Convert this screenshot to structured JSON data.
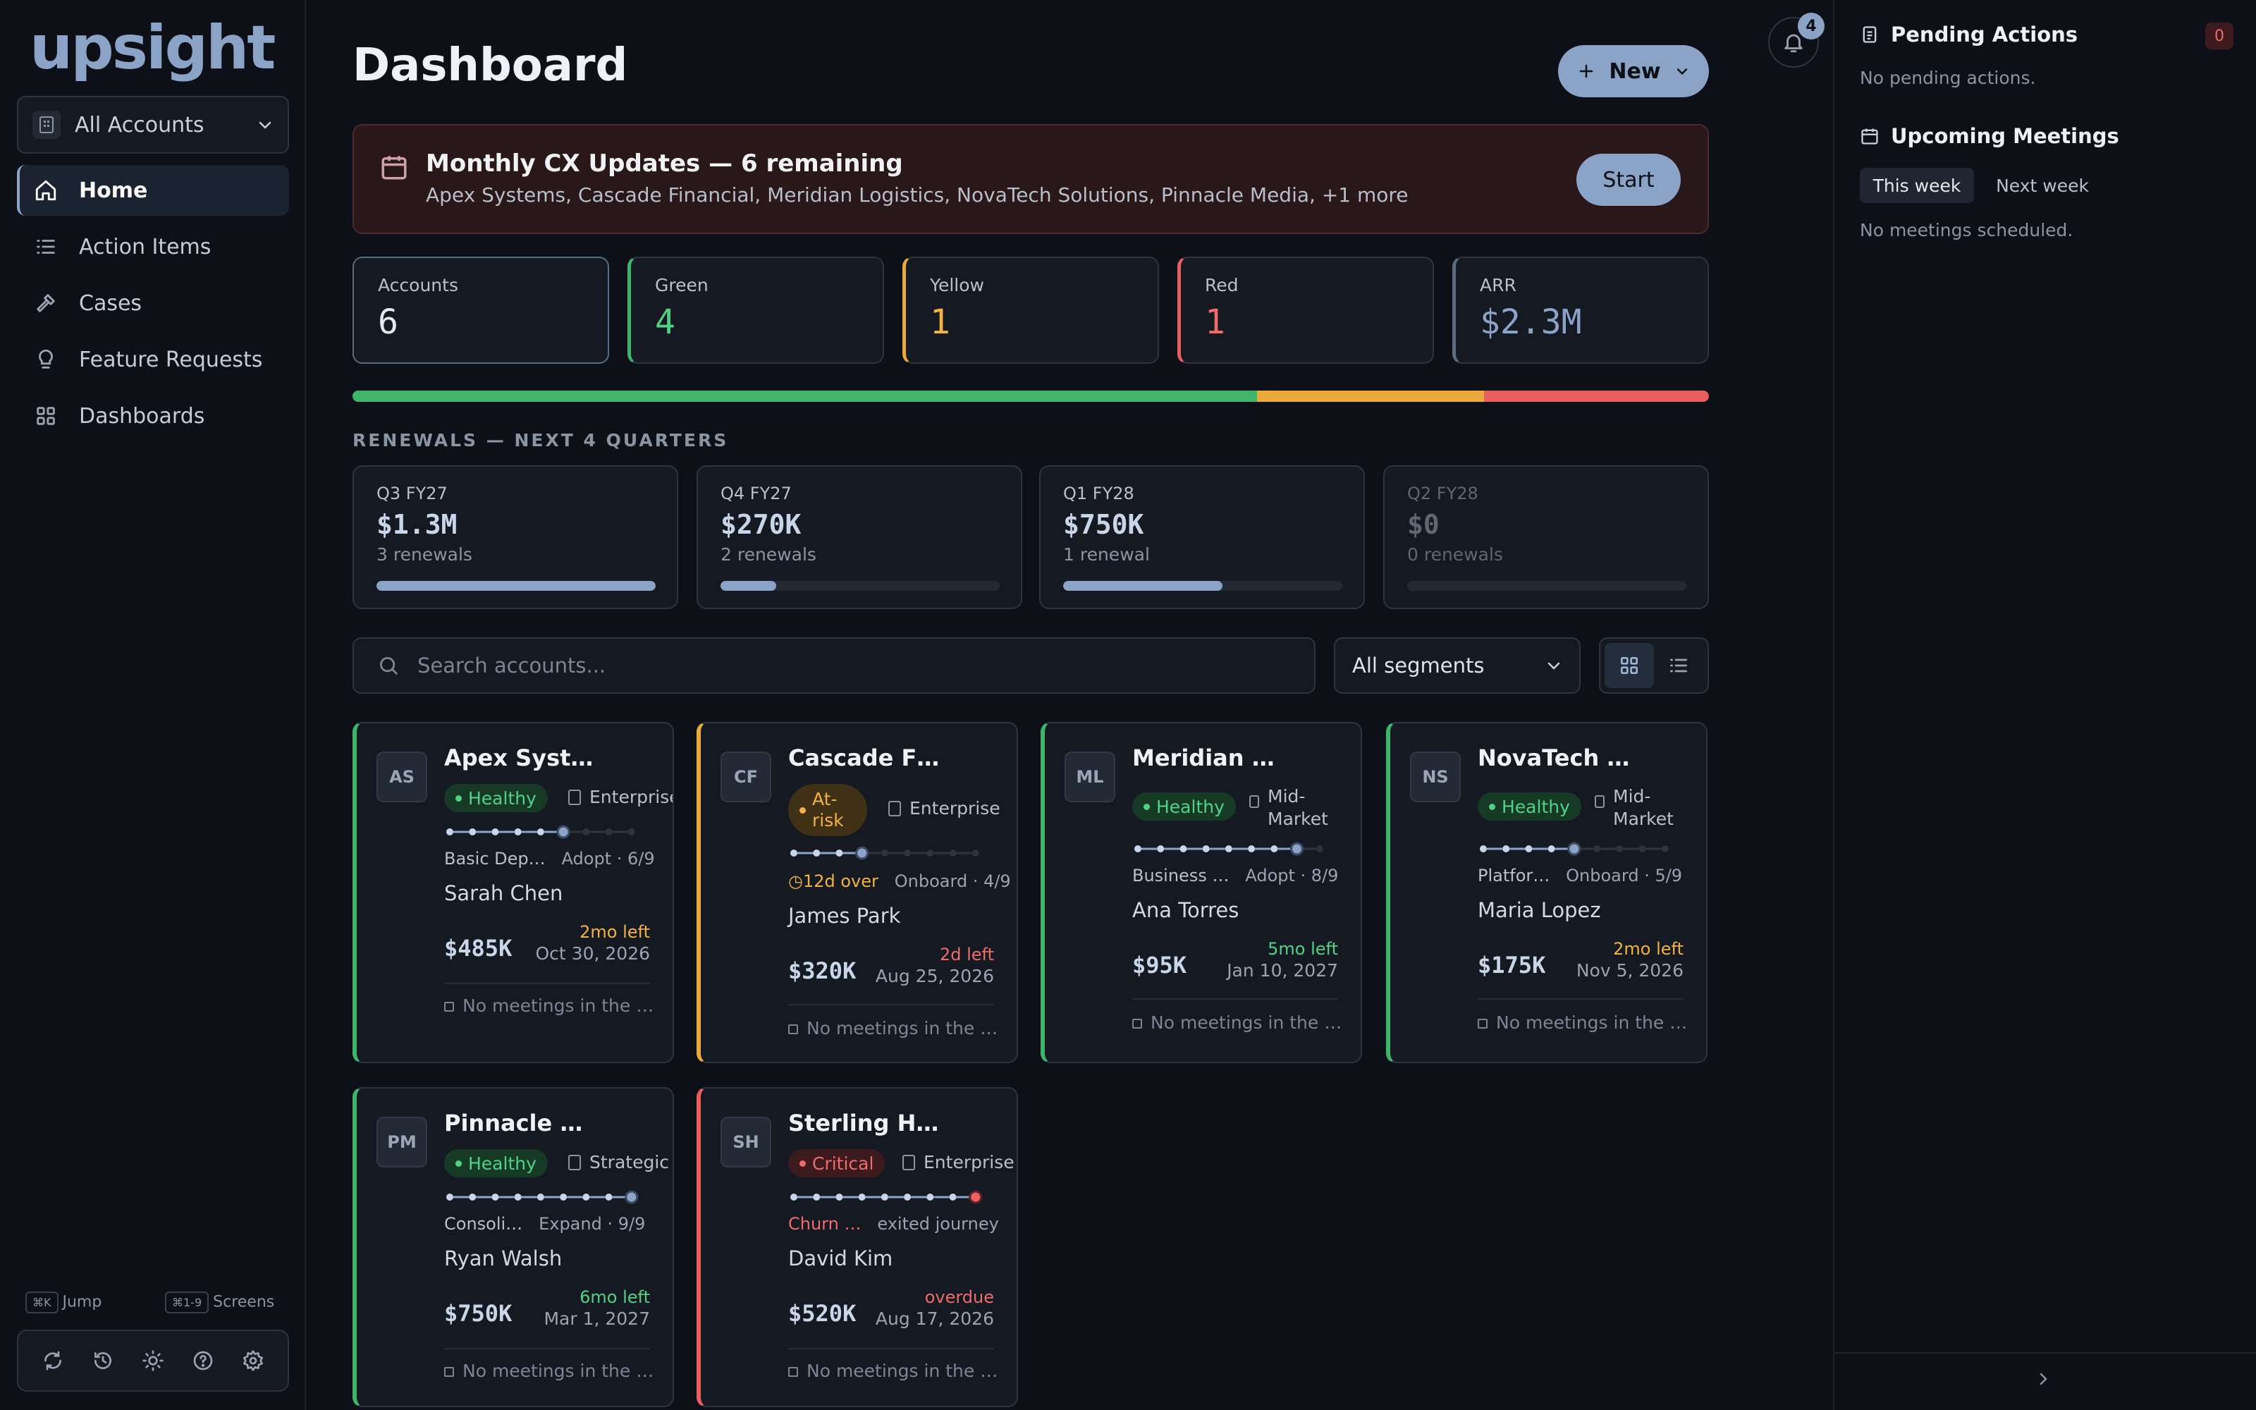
{
  "app": {
    "logo": "upsight"
  },
  "sidebar": {
    "account_selector": "All Accounts",
    "items": [
      {
        "label": "Home",
        "icon": "home-icon"
      },
      {
        "label": "Action Items",
        "icon": "list-icon"
      },
      {
        "label": "Cases",
        "icon": "hammer-icon"
      },
      {
        "label": "Feature Requests",
        "icon": "lightbulb-icon"
      },
      {
        "label": "Dashboards",
        "icon": "grid-icon"
      }
    ],
    "shortcuts": {
      "jump_key": "⌘K",
      "jump_label": "Jump",
      "screens_key": "⌘1-9",
      "screens_label": "Screens"
    }
  },
  "header": {
    "title": "Dashboard",
    "new_button": "New",
    "notification_count": "4"
  },
  "banner": {
    "title": "Monthly CX Updates — 6 remaining",
    "subtitle": "Apex Systems, Cascade Financial, Meridian Logistics, NovaTech Solutions, Pinnacle Media, +1 more",
    "action": "Start"
  },
  "stats": [
    {
      "label": "Accounts",
      "value": "6",
      "color": "#e6e9ef"
    },
    {
      "label": "Green",
      "value": "4",
      "color": "#4fd284"
    },
    {
      "label": "Yellow",
      "value": "1",
      "color": "#f0b340"
    },
    {
      "label": "Red",
      "value": "1",
      "color": "#ef6b6b"
    },
    {
      "label": "ARR",
      "value": "$2.3M",
      "color": "#8aa3c7"
    }
  ],
  "health_distribution": [
    {
      "status": "green",
      "fraction": 0.667,
      "color": "#3fb56b"
    },
    {
      "status": "yellow",
      "fraction": 0.167,
      "color": "#e9a93b"
    },
    {
      "status": "red",
      "fraction": 0.166,
      "color": "#e95f5f"
    }
  ],
  "renewals": {
    "label": "RENEWALS — NEXT 4 QUARTERS",
    "quarters": [
      {
        "quarter": "Q3 FY27",
        "amount": "$1.3M",
        "count": "3 renewals",
        "fill": 1.0
      },
      {
        "quarter": "Q4 FY27",
        "amount": "$270K",
        "count": "2 renewals",
        "fill": 0.2
      },
      {
        "quarter": "Q1 FY28",
        "amount": "$750K",
        "count": "1 renewal",
        "fill": 0.57
      },
      {
        "quarter": "Q2 FY28",
        "amount": "$0",
        "count": "0 renewals",
        "fill": 0
      }
    ]
  },
  "filters": {
    "search_placeholder": "Search accounts...",
    "segment": "All segments"
  },
  "accounts": [
    {
      "initials": "AS",
      "name": "Apex Syst…",
      "health": "Healthy",
      "segment": "Enterprise",
      "stage_name": "Basic Dep…",
      "stage": "Adopt · 6/9",
      "owner": "Sarah Chen",
      "arr": "$485K",
      "time_left": "2mo left",
      "renewal_date": "Oct 30, 2026",
      "meetings": "No meetings in the …",
      "overdue_note": "",
      "steps_done": 6,
      "steps_total": 9
    },
    {
      "initials": "CF",
      "name": "Cascade F…",
      "health": "At-risk",
      "segment": "Enterprise",
      "stage_name": "",
      "stage": "Onboard · 4/9",
      "owner": "James Park",
      "arr": "$320K",
      "time_left": "2d left",
      "renewal_date": "Aug 25, 2026",
      "meetings": "No meetings in the …",
      "overdue_note": "12d over",
      "steps_done": 4,
      "steps_total": 9
    },
    {
      "initials": "ML",
      "name": "Meridian …",
      "health": "Healthy",
      "segment": "Mid-Market",
      "stage_name": "Business …",
      "stage": "Adopt · 8/9",
      "owner": "Ana Torres",
      "arr": "$95K",
      "time_left": "5mo left",
      "renewal_date": "Jan 10, 2027",
      "meetings": "No meetings in the …",
      "overdue_note": "",
      "steps_done": 8,
      "steps_total": 9
    },
    {
      "initials": "NS",
      "name": "NovaTech …",
      "health": "Healthy",
      "segment": "Mid-Market",
      "stage_name": "Platfor…",
      "stage": "Onboard · 5/9",
      "owner": "Maria Lopez",
      "arr": "$175K",
      "time_left": "2mo left",
      "renewal_date": "Nov 5, 2026",
      "meetings": "No meetings in the …",
      "overdue_note": "",
      "steps_done": 5,
      "steps_total": 9
    },
    {
      "initials": "PM",
      "name": "Pinnacle …",
      "health": "Healthy",
      "segment": "Strategic",
      "stage_name": "Consoli…",
      "stage": "Expand · 9/9",
      "owner": "Ryan Walsh",
      "arr": "$750K",
      "time_left": "6mo left",
      "renewal_date": "Mar 1, 2027",
      "meetings": "No meetings in the …",
      "overdue_note": "",
      "steps_done": 9,
      "steps_total": 9
    },
    {
      "initials": "SH",
      "name": "Sterling H…",
      "health": "Critical",
      "segment": "Enterprise",
      "stage_name": "Churn …",
      "stage": "exited journey",
      "owner": "David Kim",
      "arr": "$520K",
      "time_left": "overdue",
      "renewal_date": "Aug 17, 2026",
      "meetings": "No meetings in the …",
      "overdue_note": "",
      "steps_done": 9,
      "steps_total": 9
    }
  ],
  "right_panel": {
    "pending_title": "Pending Actions",
    "pending_count": "0",
    "pending_empty": "No pending actions.",
    "meetings_title": "Upcoming Meetings",
    "tab_this_week": "This week",
    "tab_next_week": "Next week",
    "meetings_empty": "No meetings scheduled."
  }
}
